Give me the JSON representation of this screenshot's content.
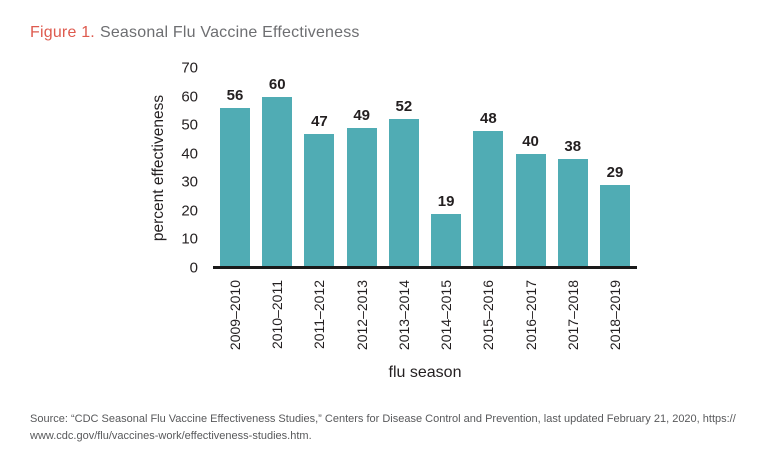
{
  "title": {
    "label": "Figure 1.",
    "text": "Seasonal Flu Vaccine Effectiveness"
  },
  "chart_data": {
    "type": "bar",
    "title": "Figure 1. Seasonal Flu Vaccine Effectiveness",
    "categories": [
      "2009–2010",
      "2010–2011",
      "2011–2012",
      "2012–2013",
      "2013–2014",
      "2014–2015",
      "2015–2016",
      "2016–2017",
      "2017–2018",
      "2018–2019"
    ],
    "values": [
      56,
      60,
      47,
      49,
      52,
      19,
      48,
      40,
      38,
      29
    ],
    "xlabel": "flu season",
    "ylabel": "percent effectiveness",
    "ylim": [
      0,
      70
    ],
    "yticks": [
      0,
      10,
      20,
      30,
      40,
      50,
      60,
      70
    ],
    "grid": false,
    "legend": false,
    "value_labels": true,
    "bar_color": "#50ACB4"
  },
  "colors": {
    "figure_label_red": "#DE5A4E",
    "title_gray": "#6D6E71",
    "bar_teal": "#50ACB4",
    "text_dark": "#231F20",
    "axis_line_black": "#1a1a1a",
    "source_gray": "#58595B",
    "background": "#ffffff"
  },
  "source": {
    "lines": [
      "Source: “CDC Seasonal Flu Vaccine Effectiveness Studies,” Centers for Disease Control and Prevention, last updated February 21, 2020, https://",
      "www.cdc.gov/flu/vaccines-work/effectiveness-studies.htm."
    ]
  }
}
